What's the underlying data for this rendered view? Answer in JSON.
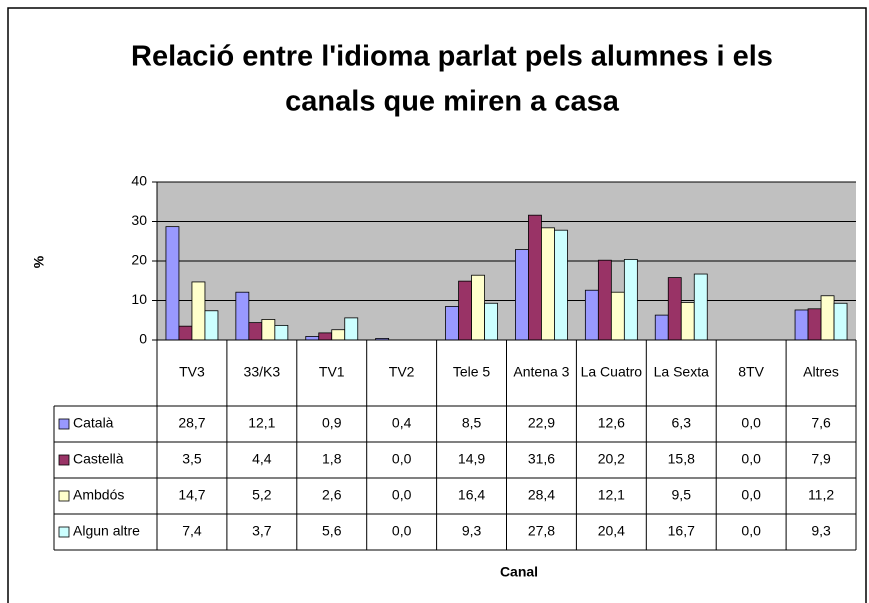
{
  "chart_data": {
    "type": "bar",
    "title": [
      "Relació entre l'idioma parlat pels alumnes i els",
      "canals que miren a casa"
    ],
    "y_label": "%",
    "x_label": "Canal",
    "categories": [
      "TV3",
      "33/K3",
      "TV1",
      "TV2",
      "Tele 5",
      "Antena 3",
      "La Cuatro",
      "La Sexta",
      "8TV",
      "Altres"
    ],
    "series": [
      {
        "name": "Català",
        "color": "#9999ff",
        "values": [
          28.7,
          12.1,
          0.9,
          0.4,
          8.5,
          22.9,
          12.6,
          6.3,
          0.0,
          7.6
        ],
        "value_labels": [
          "28,7",
          "12,1",
          "0,9",
          "0,4",
          "8,5",
          "22,9",
          "12,6",
          "6,3",
          "0,0",
          "7,6"
        ]
      },
      {
        "name": "Castellà",
        "color": "#993366",
        "values": [
          3.5,
          4.4,
          1.8,
          0.0,
          14.9,
          31.6,
          20.2,
          15.8,
          0.0,
          7.9
        ],
        "value_labels": [
          "3,5",
          "4,4",
          "1,8",
          "0,0",
          "14,9",
          "31,6",
          "20,2",
          "15,8",
          "0,0",
          "7,9"
        ]
      },
      {
        "name": "Ambdós",
        "color": "#ffffcc",
        "values": [
          14.7,
          5.2,
          2.6,
          0.0,
          16.4,
          28.4,
          12.1,
          9.5,
          0.0,
          11.2
        ],
        "value_labels": [
          "14,7",
          "5,2",
          "2,6",
          "0,0",
          "16,4",
          "28,4",
          "12,1",
          "9,5",
          "0,0",
          "11,2"
        ]
      },
      {
        "name": "Algun altre",
        "color": "#ccffff",
        "values": [
          7.4,
          3.7,
          5.6,
          0.0,
          9.3,
          27.8,
          20.4,
          16.7,
          0.0,
          9.3
        ],
        "value_labels": [
          "7,4",
          "3,7",
          "5,6",
          "0,0",
          "9,3",
          "27,8",
          "20,4",
          "16,7",
          "0,0",
          "9,3"
        ]
      }
    ],
    "ylim": [
      0,
      40
    ],
    "yticks": [
      0,
      10,
      20,
      30,
      40
    ],
    "grid": true,
    "plot_background": "#c0c0c0"
  }
}
